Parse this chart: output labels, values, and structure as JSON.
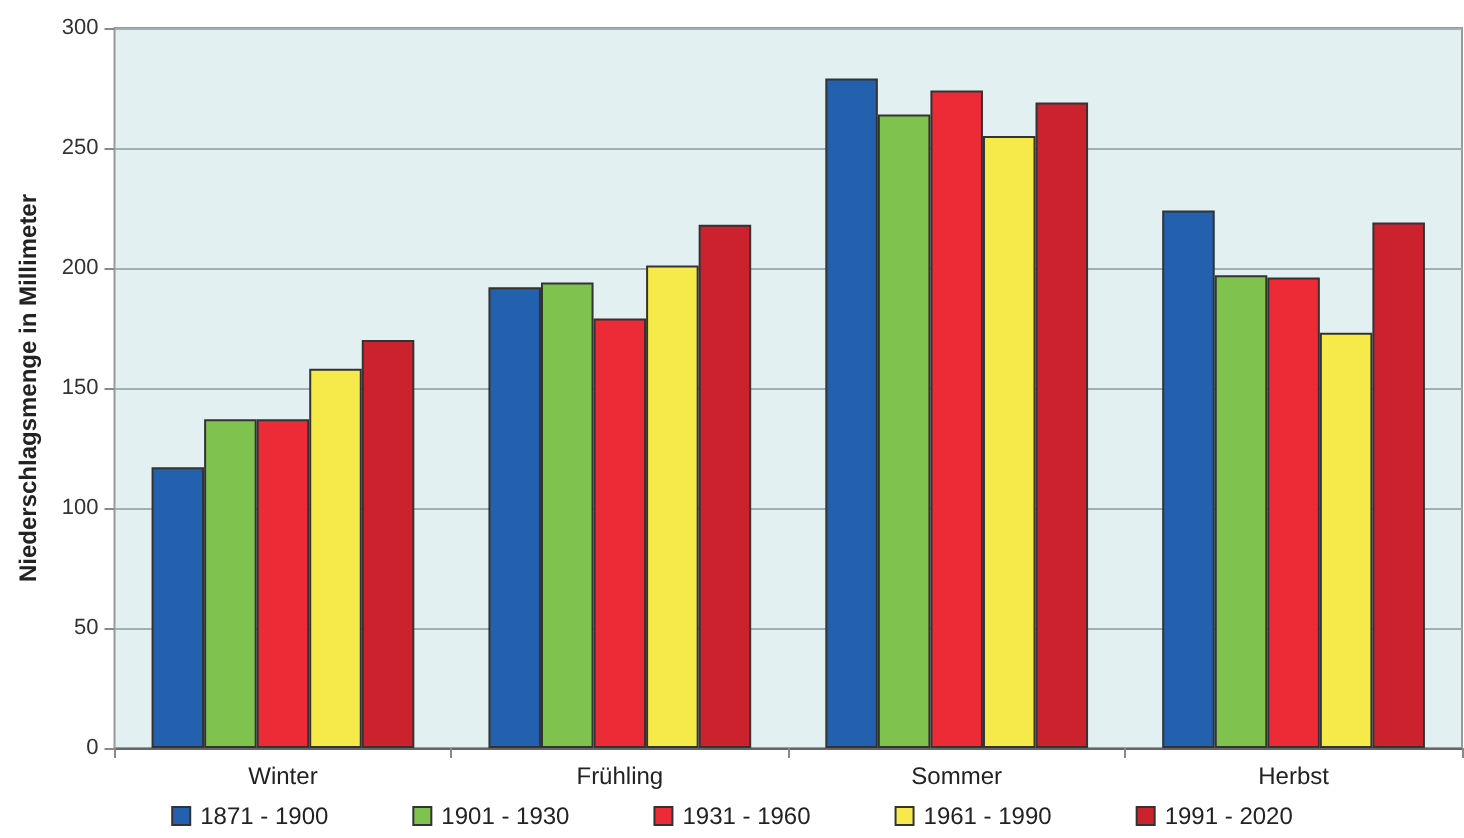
{
  "chart_data": {
    "type": "bar",
    "ylabel": "Niederschlagsmenge in Millimeter",
    "categories": [
      "Winter",
      "Frühling",
      "Sommer",
      "Herbst"
    ],
    "series": [
      {
        "name": "1871 - 1900",
        "color": "#2360ad",
        "values": [
          117,
          192,
          279,
          224
        ]
      },
      {
        "name": "1901 - 1930",
        "color": "#7fc34e",
        "values": [
          137,
          194,
          264,
          197
        ]
      },
      {
        "name": "1931 - 1960",
        "color": "#ec2b37",
        "values": [
          137,
          179,
          274,
          196
        ]
      },
      {
        "name": "1961 - 1990",
        "color": "#f6ea4b",
        "values": [
          158,
          201,
          255,
          173
        ]
      },
      {
        "name": "1991 - 2020",
        "color": "#cc222e",
        "values": [
          170,
          218,
          269,
          219
        ]
      }
    ],
    "ylim": [
      0,
      300
    ],
    "yticks": [
      0,
      50,
      100,
      150,
      200,
      250,
      300
    ],
    "grid": "y",
    "legend": "bottom"
  }
}
